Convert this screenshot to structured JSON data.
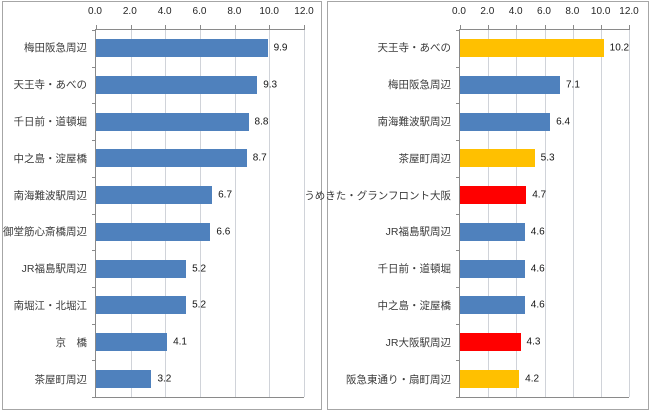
{
  "page": {
    "background": "#ffffff"
  },
  "styles": {
    "panel_border_color": "#a6a6a6",
    "axis_line_color": "#8a8a8a",
    "gridline_color": "#d0d3d9",
    "category_text_color": "#3a3a3a",
    "value_text_color": "#141414",
    "axis_text_color": "#262626"
  },
  "colors": {
    "blue": "#4F81BD",
    "orange": "#FFC000",
    "red": "#FF0000"
  },
  "chart_data": [
    {
      "type": "bar",
      "orientation": "horizontal",
      "title": "",
      "xlabel": "",
      "ylabel": "",
      "xlim": [
        0,
        12
      ],
      "xticks": [
        "0.0",
        "2.0",
        "4.0",
        "6.0",
        "8.0",
        "10.0",
        "12.0"
      ],
      "grid": true,
      "legend": "none",
      "categories": [
        "梅田阪急周辺",
        "天王寺・あべの",
        "千日前・道頓堀",
        "中之島・淀屋橋",
        "南海難波駅周辺",
        "御堂筋心斎橋周辺",
        "JR福島駅周辺",
        "南堀江・北堀江",
        "京　橋",
        "茶屋町周辺"
      ],
      "values": [
        9.9,
        9.3,
        8.8,
        8.7,
        6.7,
        6.6,
        5.2,
        5.2,
        4.1,
        3.2
      ],
      "value_labels": [
        "9.9",
        "9.3",
        "8.8",
        "8.7",
        "6.7",
        "6.6",
        "5.2",
        "5.2",
        "4.1",
        "3.2"
      ],
      "bar_colors": [
        "blue",
        "blue",
        "blue",
        "blue",
        "blue",
        "blue",
        "blue",
        "blue",
        "blue",
        "blue"
      ]
    },
    {
      "type": "bar",
      "orientation": "horizontal",
      "title": "",
      "xlabel": "",
      "ylabel": "",
      "xlim": [
        0,
        12
      ],
      "xticks": [
        "0.0",
        "2.0",
        "4.0",
        "6.0",
        "8.0",
        "10.0",
        "12.0"
      ],
      "grid": true,
      "legend": "none",
      "categories": [
        "天王寺・あべの",
        "梅田阪急周辺",
        "南海難波駅周辺",
        "茶屋町周辺",
        "うめきた・グランフロント大阪",
        "JR福島駅周辺",
        "千日前・道頓堀",
        "中之島・淀屋橋",
        "JR大阪駅周辺",
        "阪急東通り・扇町周辺"
      ],
      "values": [
        10.2,
        7.1,
        6.4,
        5.3,
        4.7,
        4.6,
        4.6,
        4.6,
        4.3,
        4.2
      ],
      "value_labels": [
        "10.2",
        "7.1",
        "6.4",
        "5.3",
        "4.7",
        "4.6",
        "4.6",
        "4.6",
        "4.3",
        "4.2"
      ],
      "bar_colors": [
        "orange",
        "blue",
        "blue",
        "orange",
        "red",
        "blue",
        "blue",
        "blue",
        "red",
        "orange"
      ]
    }
  ]
}
